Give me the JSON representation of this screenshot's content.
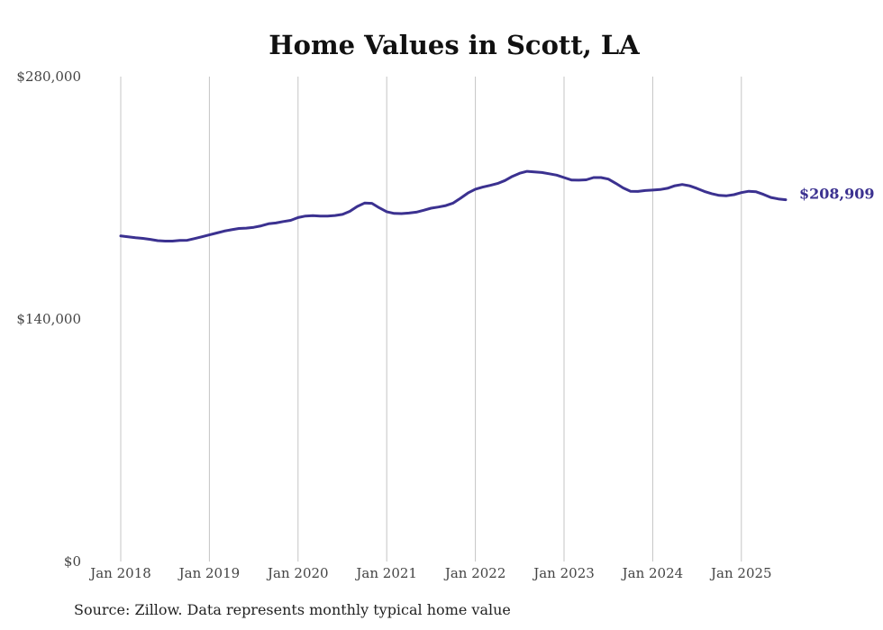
{
  "chart_data": {
    "type": "line",
    "title": "Home Values in Scott, LA",
    "xlabel": "",
    "ylabel": "",
    "ylim": [
      0,
      280000
    ],
    "yticks": [
      {
        "value": 0,
        "label": "$0"
      },
      {
        "value": 140000,
        "label": "$140,000"
      },
      {
        "value": 280000,
        "label": "$280,000"
      }
    ],
    "xticks": [
      {
        "value": "2018-01",
        "label": "Jan 2018"
      },
      {
        "value": "2019-01",
        "label": "Jan 2019"
      },
      {
        "value": "2020-01",
        "label": "Jan 2020"
      },
      {
        "value": "2021-01",
        "label": "Jan 2021"
      },
      {
        "value": "2022-01",
        "label": "Jan 2022"
      },
      {
        "value": "2023-01",
        "label": "Jan 2023"
      },
      {
        "value": "2024-01",
        "label": "Jan 2024"
      },
      {
        "value": "2025-01",
        "label": "Jan 2025"
      }
    ],
    "grid": {
      "vertical": true,
      "horizontal": false
    },
    "line_color": "#3b3190",
    "end_label": "$208,909",
    "series": [
      {
        "x": [
          "2018-01",
          "2018-02",
          "2018-03",
          "2018-04",
          "2018-05",
          "2018-06",
          "2018-07",
          "2018-08",
          "2018-09",
          "2018-10",
          "2018-11",
          "2018-12",
          "2019-01",
          "2019-02",
          "2019-03",
          "2019-04",
          "2019-05",
          "2019-06",
          "2019-07",
          "2019-08",
          "2019-09",
          "2019-10",
          "2019-11",
          "2019-12",
          "2020-01",
          "2020-02",
          "2020-03",
          "2020-04",
          "2020-05",
          "2020-06",
          "2020-07",
          "2020-08",
          "2020-09",
          "2020-10",
          "2020-11",
          "2020-12",
          "2021-01",
          "2021-02",
          "2021-03",
          "2021-04",
          "2021-05",
          "2021-06",
          "2021-07",
          "2021-08",
          "2021-09",
          "2021-10",
          "2021-11",
          "2021-12",
          "2022-01",
          "2022-02",
          "2022-03",
          "2022-04",
          "2022-05",
          "2022-06",
          "2022-07",
          "2022-08",
          "2022-09",
          "2022-10",
          "2022-11",
          "2022-12",
          "2023-01",
          "2023-02",
          "2023-03",
          "2023-04",
          "2023-05",
          "2023-06",
          "2023-07",
          "2023-08",
          "2023-09",
          "2023-10",
          "2023-11",
          "2023-12",
          "2024-01",
          "2024-02",
          "2024-03",
          "2024-04",
          "2024-05",
          "2024-06",
          "2024-07",
          "2024-08",
          "2024-09",
          "2024-10",
          "2024-11",
          "2024-12",
          "2025-01",
          "2025-02",
          "2025-03",
          "2025-04",
          "2025-05",
          "2025-06",
          "2025-07"
        ],
        "values": [
          188000,
          187500,
          187000,
          186600,
          186000,
          185300,
          185000,
          185000,
          185400,
          185500,
          186500,
          187500,
          188600,
          189700,
          190800,
          191600,
          192300,
          192500,
          193000,
          193800,
          195000,
          195500,
          196300,
          197000,
          198600,
          199500,
          199700,
          199500,
          199500,
          199800,
          200400,
          202200,
          205000,
          207000,
          206800,
          204200,
          202000,
          201000,
          200900,
          201200,
          201700,
          202800,
          204000,
          204700,
          205500,
          207000,
          209800,
          212800,
          215000,
          216200,
          217200,
          218300,
          220000,
          222400,
          224200,
          225300,
          225000,
          224600,
          223900,
          223100,
          221700,
          220300,
          220200,
          220400,
          221700,
          221700,
          220800,
          218400,
          215700,
          213800,
          213700,
          214200,
          214500,
          214800,
          215500,
          217000,
          217700,
          216900,
          215400,
          213700,
          212400,
          211400,
          211200,
          211800,
          213000,
          213800,
          213500,
          212000,
          210200,
          209400,
          208909
        ]
      }
    ]
  },
  "source_text": "Source: Zillow. Data represents monthly typical home value"
}
